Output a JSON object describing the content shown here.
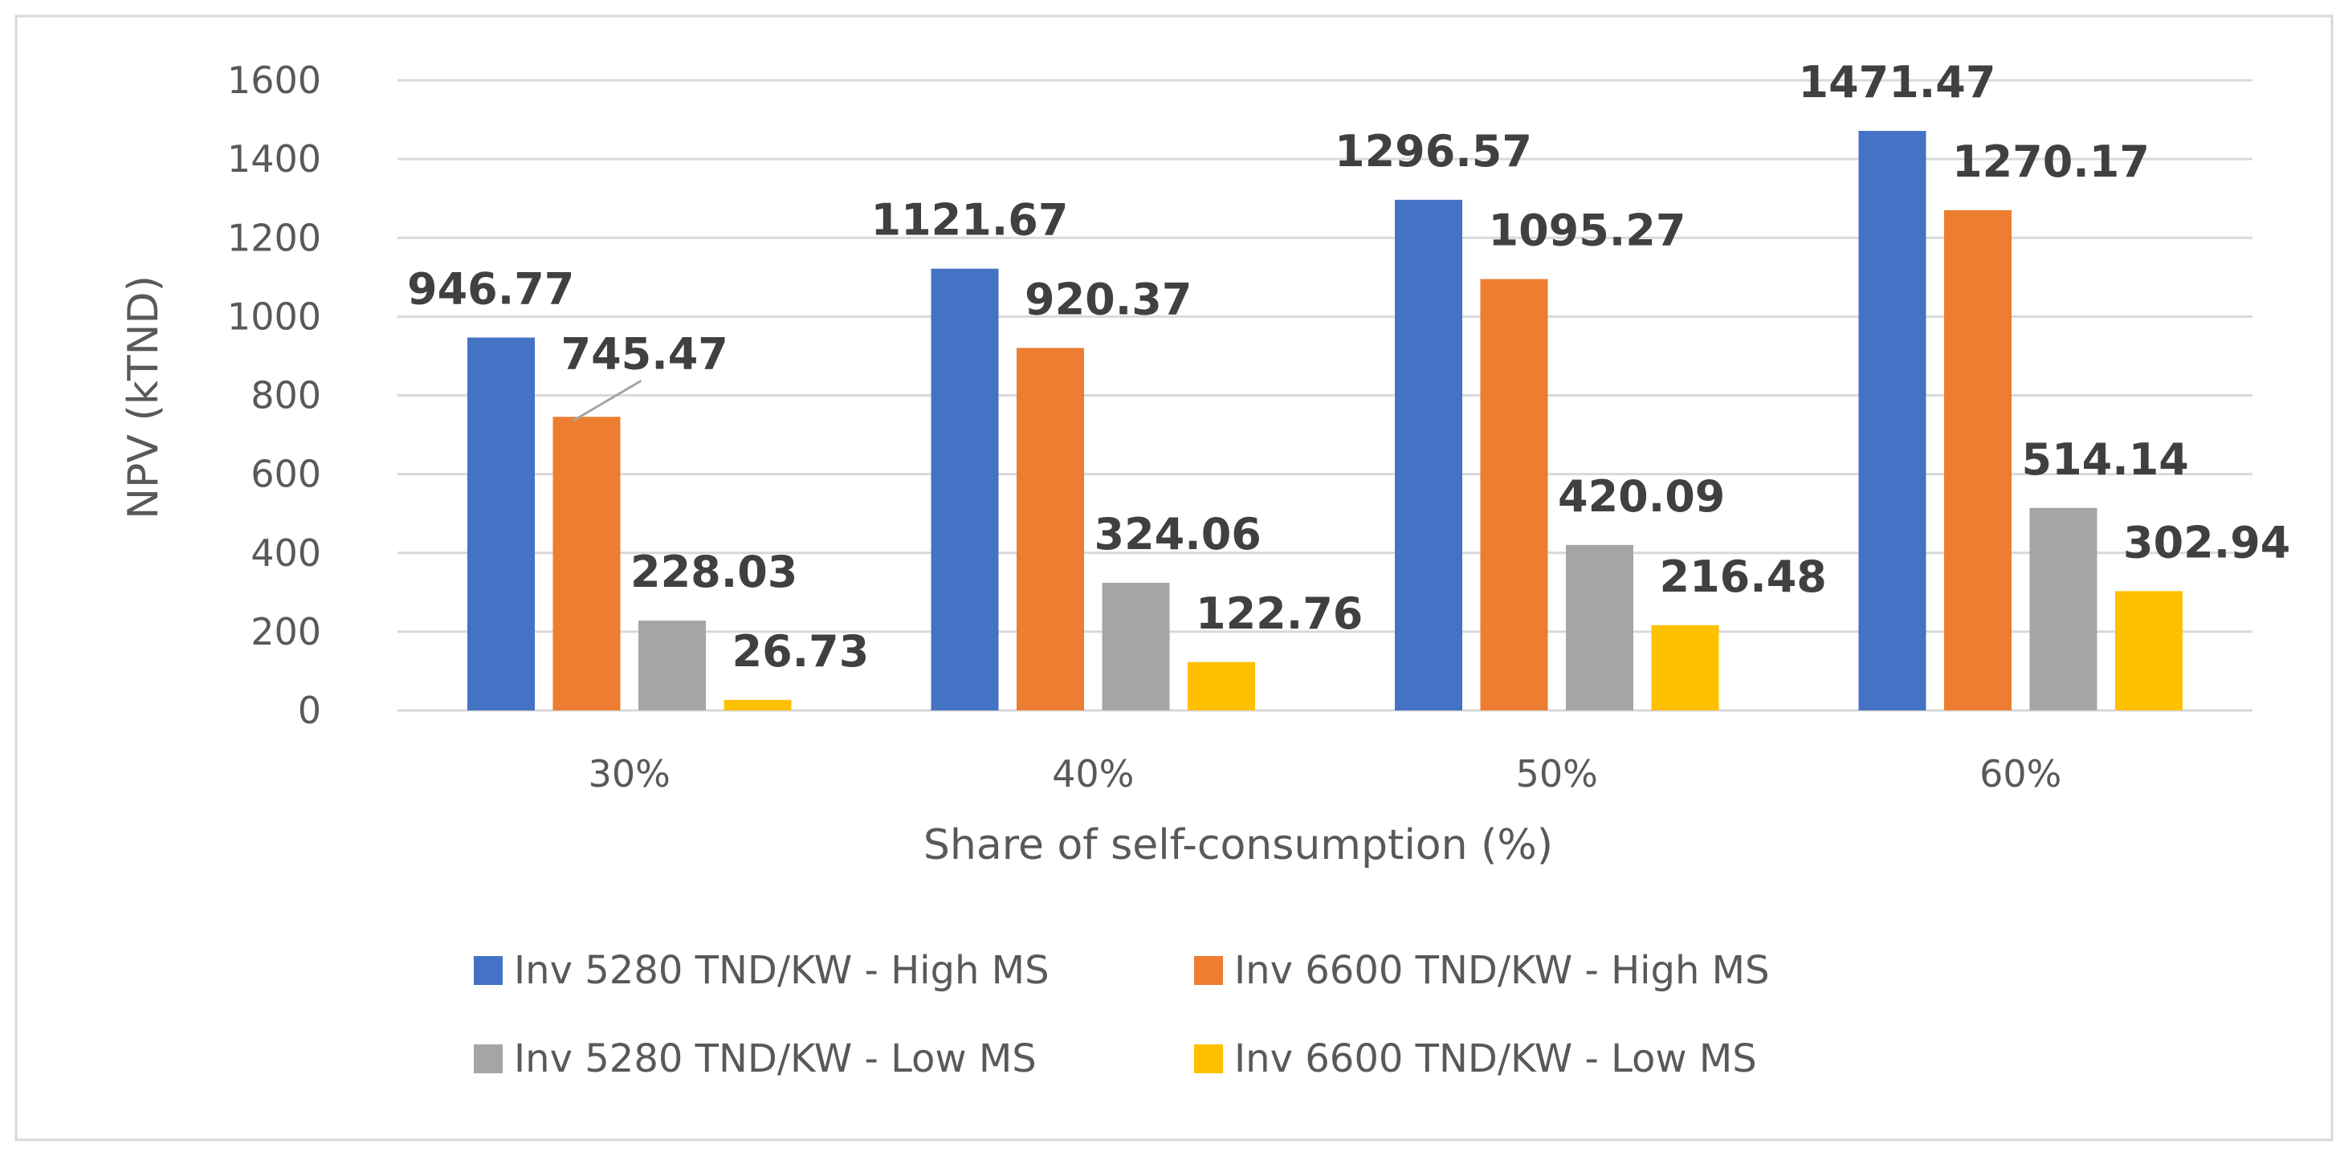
{
  "chart_data": {
    "type": "bar",
    "title": "",
    "xlabel": "Share of self-consumption (%)",
    "ylabel": "NPV (kTND)",
    "ylim": [
      0,
      1600
    ],
    "yticks": [
      0,
      200,
      400,
      600,
      800,
      1000,
      1200,
      1400,
      1600
    ],
    "grid": true,
    "legend_position": "bottom",
    "categories": [
      "30%",
      "40%",
      "50%",
      "60%"
    ],
    "series": [
      {
        "name": "Inv 5280 TND/KW - High MS",
        "color": "#4472C4",
        "values": [
          946.77,
          1121.67,
          1296.57,
          1471.47
        ],
        "labels": [
          "946.77",
          "1121.67",
          "1296.57",
          "1471.47"
        ]
      },
      {
        "name": "Inv 6600 TND/KW - High MS",
        "color": "#ED7D31",
        "values": [
          745.47,
          920.37,
          1095.27,
          1270.17
        ],
        "labels": [
          "745.47",
          "920.37",
          "1095.27",
          "1270.17"
        ]
      },
      {
        "name": "Inv 5280 TND/KW - Low MS",
        "color": "#A5A5A5",
        "values": [
          228.03,
          324.06,
          420.09,
          514.14
        ],
        "labels": [
          "228.03",
          "324.06",
          "420.09",
          "514.14"
        ]
      },
      {
        "name": "Inv 6600 TND/KW - Low MS",
        "color": "#FFC000",
        "values": [
          26.73,
          122.76,
          216.48,
          302.94
        ],
        "labels": [
          "26.73",
          "122.76",
          "216.48",
          "302.94"
        ]
      }
    ]
  }
}
